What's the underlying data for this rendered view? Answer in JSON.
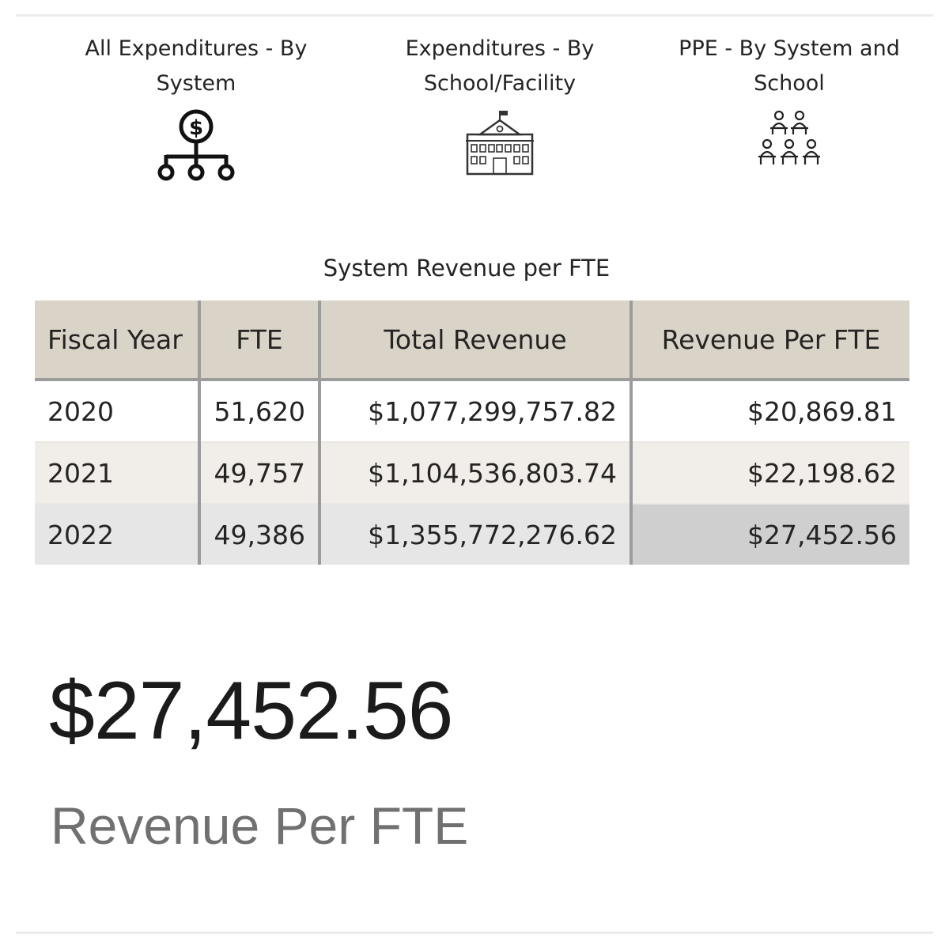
{
  "nav": {
    "tiles": [
      {
        "label": "All Expenditures - By System",
        "icon": "money-hierarchy-icon"
      },
      {
        "label": "Expenditures - By School/Facility",
        "icon": "school-building-icon"
      },
      {
        "label": "PPE - By System and School",
        "icon": "classroom-students-icon"
      }
    ]
  },
  "table": {
    "title": "System Revenue per FTE",
    "columns": [
      "Fiscal Year",
      "FTE",
      "Total Revenue",
      "Revenue Per FTE"
    ],
    "rows": [
      {
        "year": "2020",
        "fte": "51,620",
        "total_revenue": "$1,077,299,757.82",
        "revenue_per_fte": "$20,869.81"
      },
      {
        "year": "2021",
        "fte": "49,757",
        "total_revenue": "$1,104,536,803.74",
        "revenue_per_fte": "$22,198.62"
      },
      {
        "year": "2022",
        "fte": "49,386",
        "total_revenue": "$1,355,772,276.62",
        "revenue_per_fte": "$27,452.56"
      }
    ]
  },
  "kpi": {
    "value": "$27,452.56",
    "label": "Revenue Per FTE"
  },
  "colors": {
    "header_bg": "#dad3c8",
    "row_alt_bg": "#f1ede8",
    "row_selected_bg": "#e6e6e6",
    "cell_selected_bg": "#cfcfcf",
    "kpi_label": "#707070"
  }
}
